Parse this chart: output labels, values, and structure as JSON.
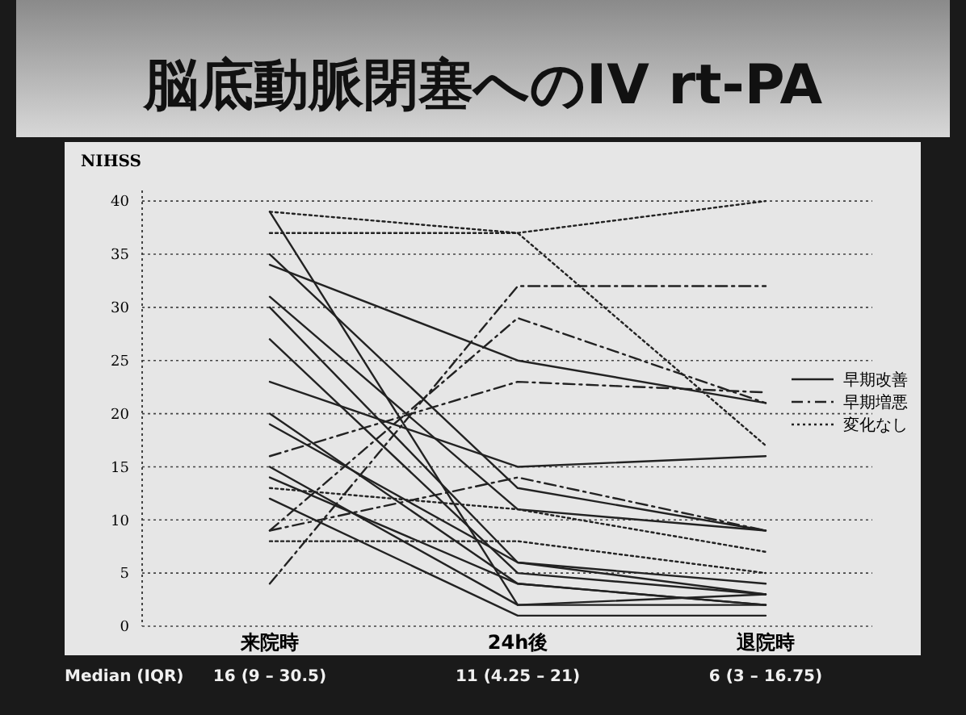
{
  "chart_data": {
    "type": "line",
    "title": "脳底動脈閉塞へのIV rt-PA",
    "ylabel": "NIHSS",
    "categories": [
      "来院時",
      "24h後",
      "退院時"
    ],
    "ylim": [
      0,
      41
    ],
    "yticks": [
      0,
      5,
      10,
      15,
      20,
      25,
      30,
      35,
      40
    ],
    "grid": "y",
    "legend": "right",
    "marker": "none",
    "annotations": [
      "Median (IQR)",
      "16 (9 – 30.5)",
      "11 (4.25 – 21)",
      "6 (3 – 16.75)"
    ],
    "series": [
      {
        "name": "早期改善",
        "color": "#222222",
        "line_style": "solid",
        "values": [
          39,
          2,
          2
        ]
      },
      {
        "color": "#222222",
        "line_style": "solid",
        "values": [
          35,
          13,
          9
        ]
      },
      {
        "color": "#222222",
        "line_style": "solid",
        "values": [
          34,
          25,
          21
        ]
      },
      {
        "color": "#222222",
        "line_style": "solid",
        "values": [
          31,
          11,
          9
        ]
      },
      {
        "color": "#222222",
        "line_style": "solid",
        "values": [
          30,
          6,
          3
        ]
      },
      {
        "color": "#222222",
        "line_style": "solid",
        "values": [
          27,
          5,
          3
        ]
      },
      {
        "color": "#222222",
        "line_style": "solid",
        "values": [
          23,
          15,
          16
        ]
      },
      {
        "color": "#222222",
        "line_style": "solid",
        "values": [
          20,
          4,
          2
        ]
      },
      {
        "color": "#222222",
        "line_style": "solid",
        "values": [
          19,
          6,
          4
        ]
      },
      {
        "color": "#222222",
        "line_style": "solid",
        "values": [
          15,
          2,
          3
        ]
      },
      {
        "color": "#222222",
        "line_style": "solid",
        "values": [
          14,
          4,
          2
        ]
      },
      {
        "color": "#222222",
        "line_style": "solid",
        "values": [
          12,
          1,
          1
        ]
      },
      {
        "name": "早期増悪",
        "color": "#222222",
        "line_style": "dashdot",
        "values": [
          4,
          32,
          32
        ]
      },
      {
        "color": "#222222",
        "line_style": "dashdot",
        "values": [
          9,
          29,
          21
        ]
      },
      {
        "color": "#222222",
        "line_style": "dashdot",
        "values": [
          16,
          23,
          22
        ]
      },
      {
        "color": "#222222",
        "line_style": "dashdot",
        "values": [
          9,
          14,
          9
        ]
      },
      {
        "name": "変化なし",
        "color": "#222222",
        "line_style": "dotted",
        "values": [
          39,
          37,
          40
        ]
      },
      {
        "color": "#222222",
        "line_style": "dotted",
        "values": [
          37,
          37,
          17
        ]
      },
      {
        "color": "#222222",
        "line_style": "dotted",
        "values": [
          13,
          11,
          7
        ]
      },
      {
        "color": "#222222",
        "line_style": "dotted",
        "values": [
          8,
          8,
          5
        ]
      }
    ]
  }
}
